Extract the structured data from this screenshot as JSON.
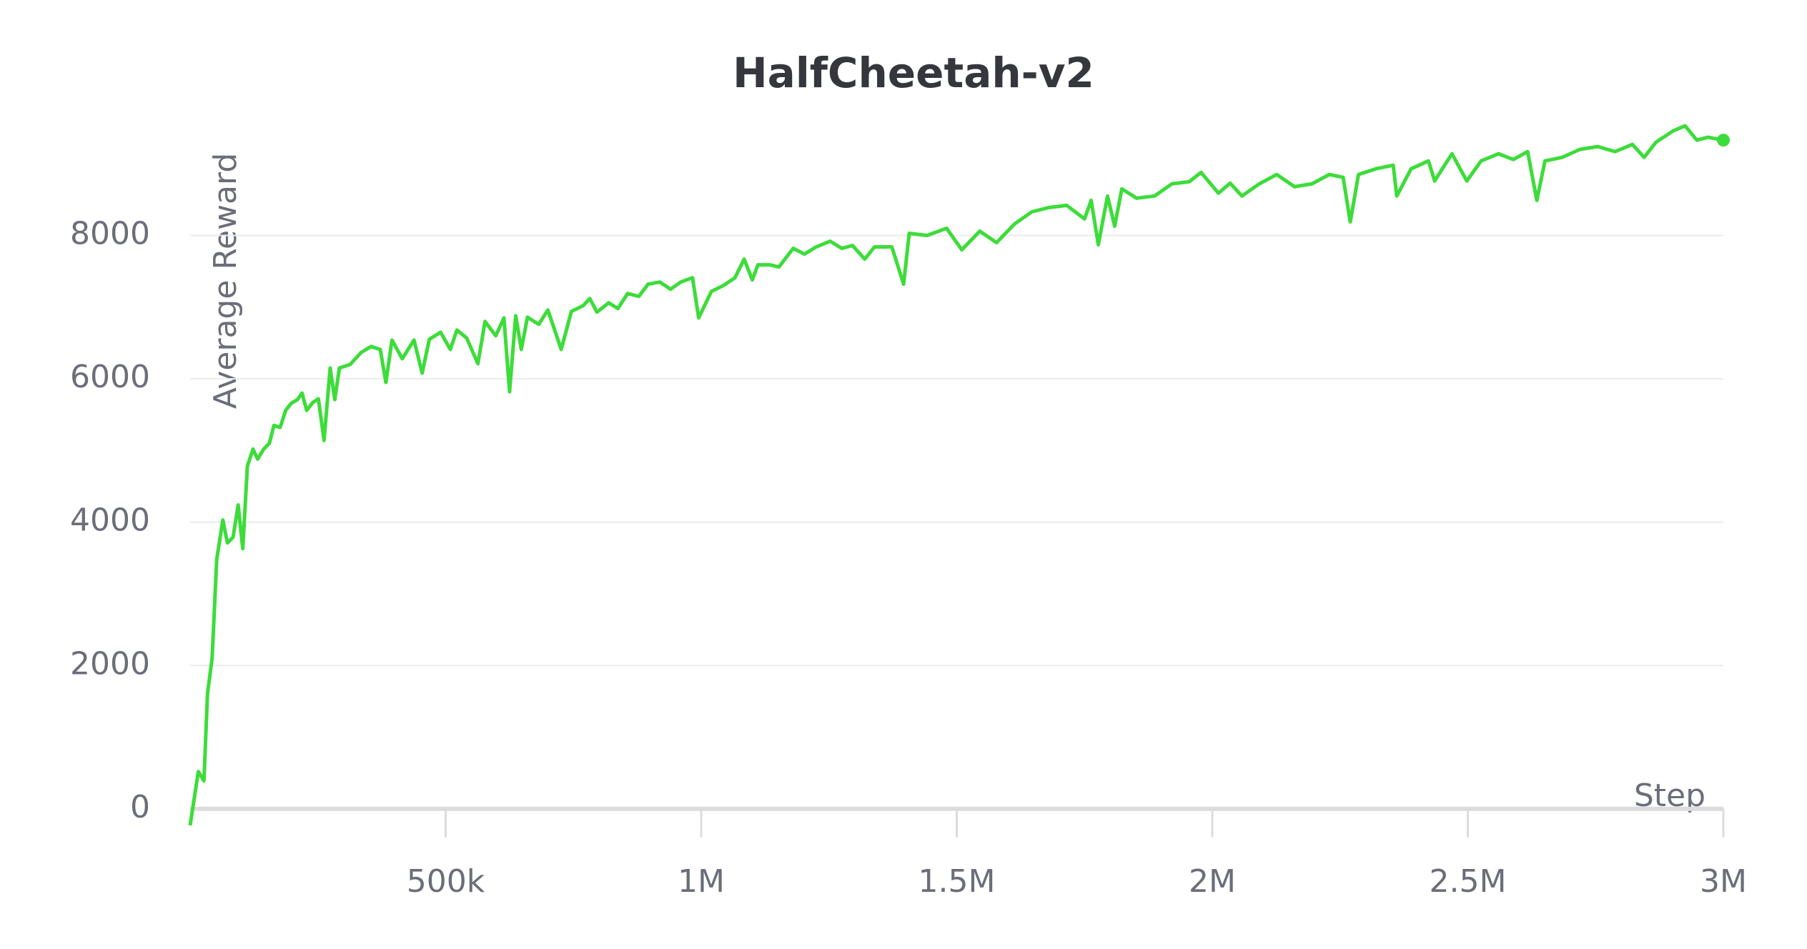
{
  "chart_data": {
    "type": "line",
    "title": "HalfCheetah-v2",
    "x_label": "Step",
    "y_label": "Average Reward",
    "xlim": [
      0,
      3000000
    ],
    "ylim": [
      -400,
      9600
    ],
    "xticks": [
      {
        "value": 500000,
        "label": "500k"
      },
      {
        "value": 1000000,
        "label": "1M"
      },
      {
        "value": 1500000,
        "label": "1.5M"
      },
      {
        "value": 2000000,
        "label": "2M"
      },
      {
        "value": 2500000,
        "label": "2.5M"
      },
      {
        "value": 3000000,
        "label": "3M"
      }
    ],
    "yticks": [
      0,
      2000,
      4000,
      6000,
      8000
    ],
    "grid": true,
    "x": [
      0,
      16000,
      27000,
      34000,
      43000,
      52000,
      64000,
      73000,
      84000,
      94000,
      103000,
      112000,
      123000,
      132000,
      144000,
      155000,
      164000,
      176000,
      187000,
      198000,
      210000,
      219000,
      228000,
      240000,
      251000,
      262000,
      274000,
      283000,
      292000,
      313000,
      335000,
      354000,
      372000,
      383000,
      395000,
      415000,
      438000,
      454000,
      468000,
      490000,
      509000,
      522000,
      541000,
      563000,
      577000,
      598000,
      614000,
      625000,
      637000,
      648000,
      660000,
      682000,
      700000,
      726000,
      746000,
      769000,
      782000,
      796000,
      819000,
      837000,
      856000,
      878000,
      896000,
      919000,
      940000,
      960000,
      983000,
      995000,
      1020000,
      1043000,
      1066000,
      1084000,
      1100000,
      1111000,
      1134000,
      1152000,
      1180000,
      1202000,
      1225000,
      1252000,
      1275000,
      1296000,
      1320000,
      1339000,
      1373000,
      1396000,
      1407000,
      1442000,
      1480000,
      1510000,
      1545000,
      1578000,
      1613000,
      1647000,
      1681000,
      1715000,
      1750000,
      1763000,
      1777000,
      1795000,
      1809000,
      1823000,
      1852000,
      1887000,
      1921000,
      1955000,
      1978000,
      2012000,
      2035000,
      2058000,
      2092000,
      2126000,
      2161000,
      2195000,
      2229000,
      2256000,
      2270000,
      2286000,
      2320000,
      2354000,
      2361000,
      2389000,
      2423000,
      2435000,
      2469000,
      2498000,
      2526000,
      2560000,
      2589000,
      2617000,
      2635000,
      2651000,
      2685000,
      2719000,
      2754000,
      2788000,
      2822000,
      2845000,
      2868000,
      2902000,
      2925000,
      2948000,
      2970000,
      3000000
    ],
    "series": [
      {
        "name": "Average Reward",
        "color": "#3ddc3a",
        "values": [
          -230,
          520,
          390,
          1610,
          2100,
          3480,
          4030,
          3710,
          3790,
          4240,
          3630,
          4780,
          5020,
          4880,
          5020,
          5100,
          5350,
          5320,
          5560,
          5660,
          5710,
          5800,
          5560,
          5670,
          5720,
          5140,
          6150,
          5710,
          6150,
          6200,
          6370,
          6450,
          6410,
          5950,
          6540,
          6280,
          6540,
          6080,
          6550,
          6650,
          6410,
          6680,
          6570,
          6210,
          6800,
          6600,
          6850,
          5820,
          6880,
          6410,
          6860,
          6760,
          6960,
          6410,
          6940,
          7020,
          7120,
          6930,
          7060,
          6980,
          7190,
          7150,
          7320,
          7350,
          7250,
          7350,
          7410,
          6850,
          7220,
          7300,
          7410,
          7670,
          7380,
          7590,
          7590,
          7560,
          7820,
          7740,
          7840,
          7920,
          7820,
          7860,
          7670,
          7840,
          7840,
          7320,
          8030,
          8000,
          8100,
          7800,
          8060,
          7900,
          8160,
          8330,
          8390,
          8420,
          8230,
          8490,
          7870,
          8550,
          8130,
          8650,
          8520,
          8550,
          8720,
          8750,
          8880,
          8590,
          8730,
          8550,
          8720,
          8850,
          8680,
          8720,
          8850,
          8810,
          8190,
          8850,
          8930,
          8980,
          8550,
          8930,
          9040,
          8760,
          9140,
          8760,
          9040,
          9140,
          9060,
          9170,
          8490,
          9040,
          9090,
          9200,
          9240,
          9170,
          9270,
          9090,
          9300,
          9460,
          9530,
          9330,
          9370,
          9330
        ]
      }
    ]
  }
}
